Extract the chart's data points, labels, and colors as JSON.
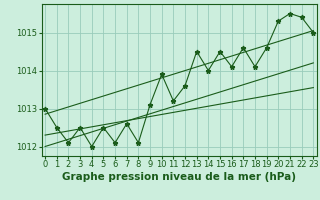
{
  "xlabel": "Graphe pression niveau de la mer (hPa)",
  "bg_color": "#cceedd",
  "grid_color": "#99ccbb",
  "line_color": "#1a5c1a",
  "x_values": [
    0,
    1,
    2,
    3,
    4,
    5,
    6,
    7,
    8,
    9,
    10,
    11,
    12,
    13,
    14,
    15,
    16,
    17,
    18,
    19,
    20,
    21,
    22,
    23
  ],
  "y_values": [
    1013.0,
    1012.5,
    1012.1,
    1012.5,
    1012.0,
    1012.5,
    1012.1,
    1012.6,
    1012.1,
    1013.1,
    1013.9,
    1013.2,
    1013.6,
    1014.5,
    1014.0,
    1014.5,
    1014.1,
    1014.6,
    1014.1,
    1014.6,
    1015.3,
    1015.5,
    1015.4,
    1015.0
  ],
  "trend_line1_x": [
    0,
    23
  ],
  "trend_line1_y": [
    1012.85,
    1015.05
  ],
  "trend_line2_x": [
    0,
    23
  ],
  "trend_line2_y": [
    1012.0,
    1014.2
  ],
  "trend_line3_x": [
    0,
    23
  ],
  "trend_line3_y": [
    1012.3,
    1013.55
  ],
  "ylim": [
    1011.75,
    1015.75
  ],
  "yticks": [
    1012,
    1013,
    1014,
    1015
  ],
  "xticks": [
    0,
    1,
    2,
    3,
    4,
    5,
    6,
    7,
    8,
    9,
    10,
    11,
    12,
    13,
    14,
    15,
    16,
    17,
    18,
    19,
    20,
    21,
    22,
    23
  ],
  "xlabel_fontsize": 7.5,
  "tick_fontsize": 6,
  "marker_size": 3.5,
  "line_width": 0.8
}
